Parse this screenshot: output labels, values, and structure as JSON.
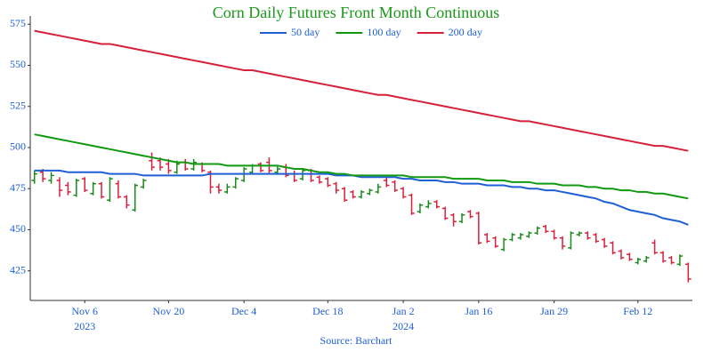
{
  "chart_data": {
    "type": "ohlc",
    "title": "Corn Daily Futures Front Month Continuous",
    "title_color": "#1a9a1a",
    "source": "Source: Barchart",
    "text_color": "#1f5fd6",
    "increasing_color": "#1a8a1a",
    "decreasing_color": "#d9213a",
    "x": [
      "2023-10-27",
      "2023-10-30",
      "2023-10-31",
      "2023-11-01",
      "2023-11-02",
      "2023-11-03",
      "2023-11-06",
      "2023-11-07",
      "2023-11-08",
      "2023-11-09",
      "2023-11-10",
      "2023-11-13",
      "2023-11-14",
      "2023-11-15",
      "2023-11-16",
      "2023-11-17",
      "2023-11-20",
      "2023-11-21",
      "2023-11-22",
      "2023-11-24",
      "2023-11-27",
      "2023-11-28",
      "2023-11-29",
      "2023-11-30",
      "2023-12-01",
      "2023-12-04",
      "2023-12-05",
      "2023-12-06",
      "2023-12-07",
      "2023-12-08",
      "2023-12-11",
      "2023-12-12",
      "2023-12-13",
      "2023-12-14",
      "2023-12-15",
      "2023-12-18",
      "2023-12-19",
      "2023-12-20",
      "2023-12-21",
      "2023-12-22",
      "2023-12-26",
      "2023-12-27",
      "2023-12-28",
      "2023-12-29",
      "2024-01-02",
      "2024-01-03",
      "2024-01-04",
      "2024-01-05",
      "2024-01-08",
      "2024-01-09",
      "2024-01-10",
      "2024-01-11",
      "2024-01-12",
      "2024-01-16",
      "2024-01-17",
      "2024-01-18",
      "2024-01-19",
      "2024-01-22",
      "2024-01-23",
      "2024-01-24",
      "2024-01-25",
      "2024-01-26",
      "2024-01-29",
      "2024-01-30",
      "2024-01-31",
      "2024-02-01",
      "2024-02-02",
      "2024-02-05",
      "2024-02-06",
      "2024-02-07",
      "2024-02-08",
      "2024-02-09",
      "2024-02-12",
      "2024-02-13",
      "2024-02-14",
      "2024-02-15",
      "2024-02-16",
      "2024-02-20",
      "2024-02-21"
    ],
    "open": [
      480,
      485,
      480,
      480,
      477,
      471,
      481,
      472,
      478,
      468,
      478,
      470,
      462,
      476,
      492,
      492,
      490,
      485,
      491,
      487,
      490,
      485,
      476,
      473,
      476,
      480,
      485,
      490,
      491,
      485,
      488,
      484,
      481,
      486,
      482,
      481,
      478,
      475,
      473,
      470,
      472,
      473,
      480,
      479,
      475,
      471,
      461,
      464,
      467,
      463,
      459,
      455,
      461,
      460,
      447,
      445,
      438,
      444,
      445,
      446,
      448,
      452,
      449,
      445,
      439,
      447,
      448,
      447,
      444,
      442,
      437,
      435,
      430,
      431,
      442,
      436,
      433,
      429,
      429
    ],
    "high": [
      486,
      487,
      485,
      482,
      479,
      481,
      482,
      479,
      479,
      482,
      480,
      471,
      478,
      481,
      497,
      494,
      493,
      492,
      493,
      493,
      491,
      486,
      478,
      478,
      482,
      488,
      490,
      491,
      494,
      489,
      490,
      486,
      487,
      487,
      483,
      482,
      479,
      476,
      474,
      474,
      475,
      478,
      482,
      480,
      476,
      472,
      466,
      468,
      468,
      464,
      460,
      460,
      462,
      461,
      448,
      446,
      445,
      448,
      448,
      449,
      452,
      453,
      450,
      446,
      449,
      449,
      449,
      448,
      445,
      443,
      438,
      436,
      433,
      434,
      444,
      437,
      434,
      435,
      430
    ],
    "low": [
      478,
      479,
      478,
      470,
      471,
      470,
      473,
      471,
      469,
      467,
      469,
      463,
      461,
      475,
      486,
      486,
      484,
      484,
      486,
      486,
      485,
      472,
      472,
      472,
      475,
      479,
      484,
      485,
      484,
      484,
      482,
      479,
      480,
      479,
      478,
      476,
      472,
      467,
      469,
      469,
      471,
      472,
      476,
      473,
      469,
      459,
      460,
      463,
      463,
      456,
      452,
      454,
      457,
      441,
      442,
      439,
      437,
      443,
      444,
      445,
      447,
      448,
      444,
      438,
      438,
      446,
      444,
      442,
      439,
      435,
      432,
      431,
      429,
      430,
      435,
      430,
      429,
      428,
      418
    ],
    "close": [
      484,
      481,
      483,
      474,
      473,
      480,
      474,
      478,
      470,
      481,
      470,
      465,
      477,
      480,
      488,
      488,
      486,
      490,
      487,
      491,
      486,
      476,
      474,
      476,
      481,
      487,
      489,
      486,
      486,
      487,
      483,
      480,
      486,
      480,
      479,
      477,
      474,
      468,
      470,
      473,
      474,
      476,
      477,
      474,
      470,
      460,
      465,
      466,
      464,
      457,
      455,
      459,
      458,
      442,
      443,
      440,
      444,
      447,
      447,
      448,
      451,
      449,
      445,
      440,
      448,
      448,
      445,
      443,
      440,
      436,
      433,
      432,
      432,
      433,
      436,
      431,
      430,
      434,
      420
    ],
    "series": [
      {
        "name": "50 day",
        "color": "#1f5fd6",
        "values": [
          486,
          486,
          486,
          486,
          485,
          485,
          485,
          485,
          485,
          484,
          484,
          484,
          484,
          483,
          483,
          483,
          483,
          483,
          483,
          483,
          483,
          484,
          484,
          484,
          484,
          484,
          484,
          484,
          484,
          484,
          484,
          484,
          484,
          484,
          484,
          484,
          483,
          483,
          483,
          482,
          482,
          482,
          482,
          482,
          481,
          481,
          480,
          480,
          480,
          479,
          479,
          478,
          478,
          478,
          477,
          477,
          477,
          476,
          476,
          475,
          475,
          474,
          474,
          473,
          472,
          471,
          470,
          469,
          467,
          466,
          464,
          462,
          461,
          460,
          459,
          457,
          456,
          455,
          453
        ]
      },
      {
        "name": "100 day",
        "color": "#119911",
        "values": [
          508,
          507,
          506,
          505,
          504,
          503,
          502,
          501,
          500,
          499,
          498,
          497,
          496,
          495,
          494,
          493,
          492,
          491,
          491,
          490,
          490,
          490,
          490,
          489,
          489,
          489,
          489,
          489,
          489,
          489,
          488,
          487,
          487,
          486,
          485,
          485,
          484,
          484,
          483,
          483,
          483,
          483,
          483,
          483,
          483,
          482,
          482,
          482,
          482,
          482,
          481,
          481,
          481,
          481,
          480,
          480,
          480,
          479,
          479,
          479,
          478,
          478,
          478,
          477,
          477,
          477,
          476,
          476,
          475,
          475,
          474,
          474,
          473,
          473,
          472,
          472,
          471,
          470,
          469
        ]
      },
      {
        "name": "200 day",
        "color": "#d6213a",
        "values": [
          571,
          570,
          569,
          568,
          567,
          566,
          565,
          564,
          563,
          563,
          562,
          561,
          560,
          559,
          558,
          557,
          556,
          555,
          554,
          553,
          552,
          551,
          550,
          549,
          548,
          547,
          547,
          546,
          545,
          544,
          543,
          542,
          541,
          540,
          539,
          538,
          537,
          536,
          535,
          534,
          533,
          532,
          532,
          531,
          530,
          529,
          528,
          527,
          526,
          525,
          524,
          523,
          522,
          521,
          520,
          519,
          518,
          517,
          516,
          516,
          515,
          514,
          513,
          512,
          511,
          510,
          509,
          508,
          507,
          506,
          505,
          504,
          503,
          502,
          501,
          501,
          500,
          499,
          498
        ]
      }
    ],
    "ylim": [
      407,
      580
    ],
    "yticks": [
      425,
      450,
      475,
      500,
      525,
      550,
      575
    ],
    "xticks": [
      {
        "value": "2023-11-06",
        "label": "Nov 6"
      },
      {
        "value": "2023-11-20",
        "label": "Nov 20"
      },
      {
        "value": "2023-12-04",
        "label": "Dec 4"
      },
      {
        "value": "2023-12-18",
        "label": "Dec 18"
      },
      {
        "value": "2024-01-02",
        "label": "Jan 2"
      },
      {
        "value": "2024-01-16",
        "label": "Jan 16"
      },
      {
        "value": "2024-01-29",
        "label": "Jan 29"
      },
      {
        "value": "2024-02-12",
        "label": "Feb 12"
      }
    ],
    "xtick_years": [
      {
        "value": "2023-11-06",
        "label": "2023"
      },
      {
        "value": "2024-01-02",
        "label": "2024"
      }
    ]
  }
}
